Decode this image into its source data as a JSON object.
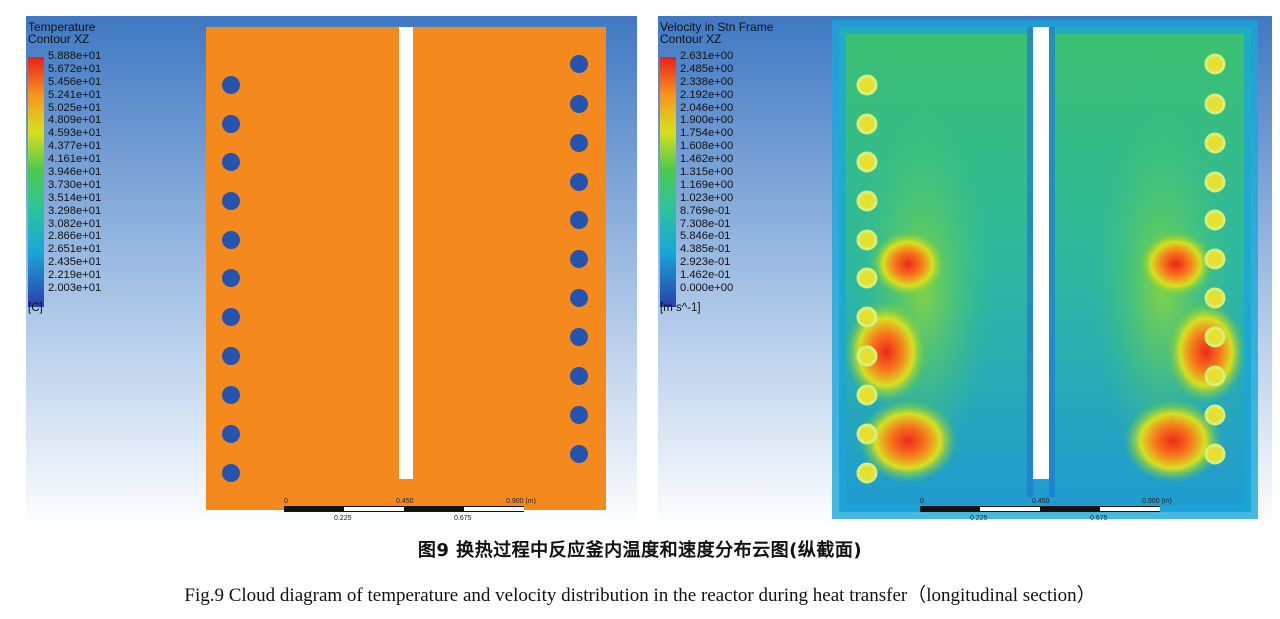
{
  "figure": {
    "caption_cn": "图9   换热过程中反应釜内温度和速度分布云图(纵截面)",
    "caption_en": "Fig.9    Cloud diagram of temperature and velocity distribution in the reactor during heat transfer（longitudinal section）"
  },
  "left_panel": {
    "title_line1": "Temperature",
    "title_line2": "Contour XZ",
    "unit": "[C]",
    "ticks": [
      "5.888e+01",
      "5.672e+01",
      "5.456e+01",
      "5.241e+01",
      "5.025e+01",
      "4.809e+01",
      "4.593e+01",
      "4.377e+01",
      "4.161e+01",
      "3.946e+01",
      "3.730e+01",
      "3.514e+01",
      "3.298e+01",
      "3.082e+01",
      "2.866e+01",
      "2.651e+01",
      "2.435e+01",
      "2.219e+01",
      "2.003e+01"
    ],
    "scale": {
      "top_labels": [
        "0",
        "0.450",
        "0.900  (m)"
      ],
      "bottom_labels": [
        "0.225",
        "0.675"
      ]
    },
    "colors": {
      "background": "#4f86c8",
      "field": "#f48a1e",
      "holes": "#2554b0",
      "shaft": "#ffffff"
    }
  },
  "right_panel": {
    "title_line1": "Velocity in Stn Frame",
    "title_line2": "Contour XZ",
    "unit": "[m s^-1]",
    "ticks": [
      "2.631e+00",
      "2.485e+00",
      "2.338e+00",
      "2.192e+00",
      "2.046e+00",
      "1.900e+00",
      "1.754e+00",
      "1.608e+00",
      "1.462e+00",
      "1.315e+00",
      "1.169e+00",
      "1.023e+00",
      "8.769e-01",
      "7.308e-01",
      "5.846e-01",
      "4.385e-01",
      "2.923e-01",
      "1.462e-01",
      "0.000e+00"
    ],
    "scale": {
      "top_labels": [
        "0",
        "0.450",
        "0.900  (m)"
      ],
      "bottom_labels": [
        "0.225",
        "0.675"
      ]
    },
    "colors": {
      "background": "#4f86c8",
      "field_low": "#1a8fd0",
      "field_mid": "#3cc85a",
      "field_high": "#ec2a18",
      "holes": "#e8e030"
    }
  }
}
